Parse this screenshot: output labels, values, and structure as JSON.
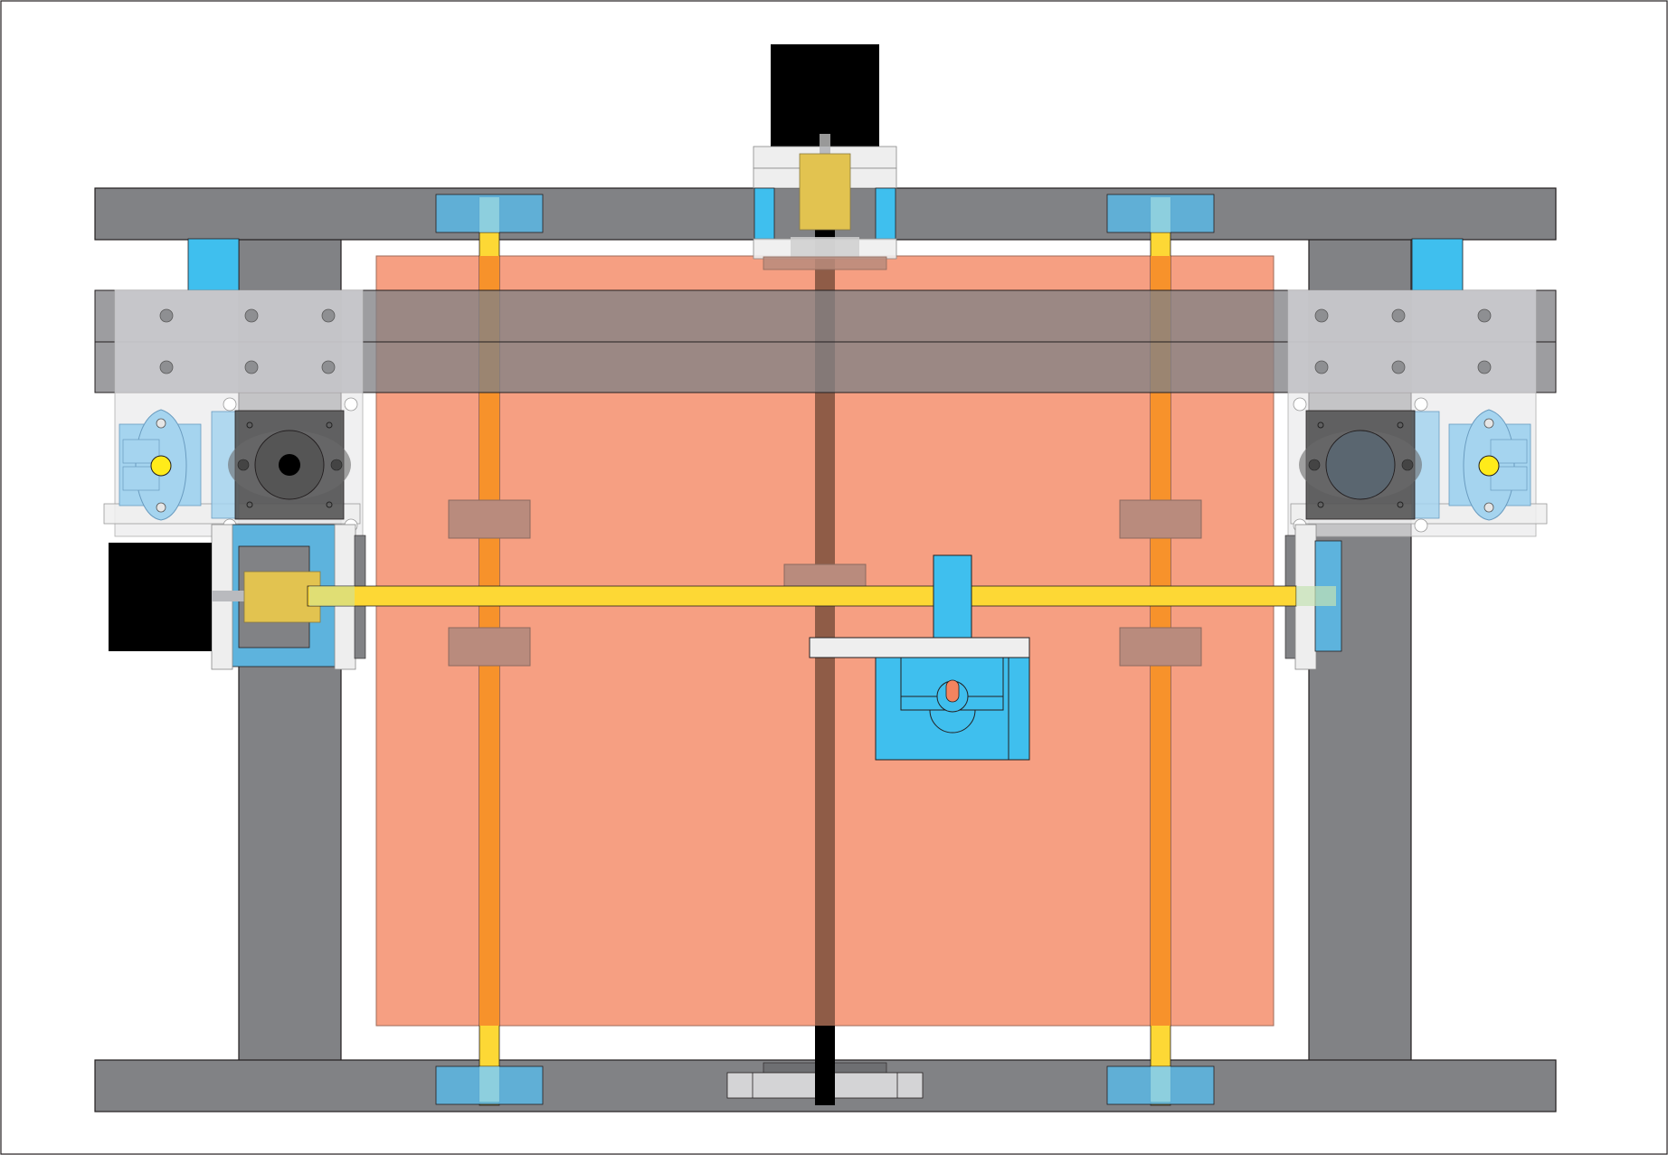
{
  "colors": {
    "frame": "#818285",
    "frame_light": "#b9babe",
    "bed": "#f4845f",
    "bed_opacity": 0.78,
    "rod": "#fdd835",
    "rod_orange": "#f7922b",
    "lead_screw": "#8f5c47",
    "black": "#000000",
    "blue": "#3fbfee",
    "blue_soft": "#5db3dd",
    "blue_pale": "#a5d4ef",
    "bushing": "#b98b7d",
    "plate_white": "#eeeeee",
    "motor_dark": "#555555",
    "coupler": "#e2c350",
    "hole_yellow": "#ffeb1a"
  },
  "components": {
    "top_motor": "stepper-motor",
    "left_motor": "stepper-motor",
    "carriage": "extruder-carriage",
    "bed": "print-bed",
    "left_idler": "pulley-block",
    "right_idler": "pulley-block"
  }
}
